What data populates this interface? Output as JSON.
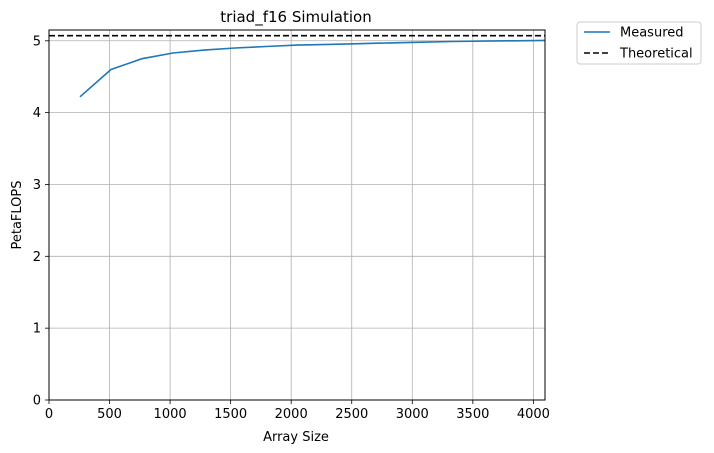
{
  "chart_data": {
    "type": "line",
    "title": "triad_f16 Simulation",
    "xlabel": "Array Size",
    "ylabel": "PetaFLOPS",
    "xlim": [
      0,
      4096
    ],
    "ylim": [
      0,
      5.15
    ],
    "xticks": [
      "0",
      "500",
      "1000",
      "1500",
      "2000",
      "2500",
      "3000",
      "3500",
      "4000"
    ],
    "xtick_values": [
      0,
      500,
      1000,
      1500,
      2000,
      2500,
      3000,
      3500,
      4000
    ],
    "yticks": [
      "0",
      "1",
      "2",
      "3",
      "4",
      "5"
    ],
    "ytick_values": [
      0,
      1,
      2,
      3,
      4,
      5
    ],
    "grid": true,
    "legend_position": "outside-top-right",
    "series": [
      {
        "name": "Measured",
        "style": "solid",
        "color": "#1f77b4",
        "x": [
          256,
          512,
          768,
          1024,
          1280,
          1536,
          1792,
          2048,
          2304,
          2560,
          2816,
          3072,
          3328,
          3584,
          3840,
          4096
        ],
        "y": [
          4.22,
          4.6,
          4.75,
          4.83,
          4.87,
          4.9,
          4.92,
          4.94,
          4.95,
          4.96,
          4.97,
          4.98,
          4.99,
          4.995,
          5.0,
          5.005
        ]
      },
      {
        "name": "Theoretical",
        "style": "dashed",
        "color": "#000000",
        "x": [
          0,
          4096
        ],
        "y": [
          5.07,
          5.07
        ]
      }
    ]
  }
}
